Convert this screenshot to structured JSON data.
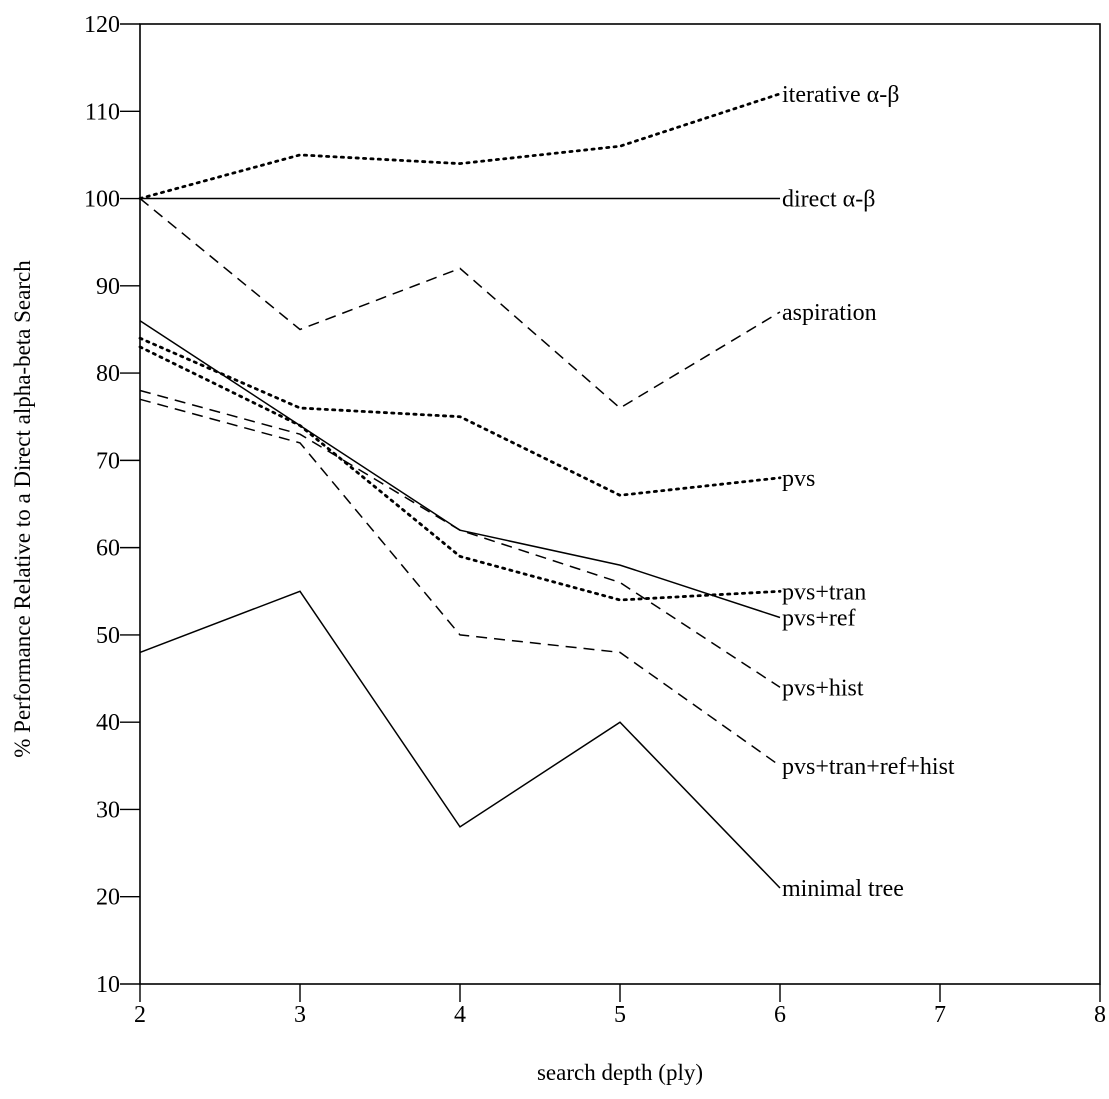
{
  "chart_data": {
    "type": "line",
    "title": "",
    "xlabel": "search depth (ply)",
    "ylabel": "% Performance Relative to a Direct alpha-beta Search",
    "xlim": [
      2,
      8
    ],
    "ylim": [
      10,
      120
    ],
    "xticks": [
      "2",
      "3",
      "4",
      "5",
      "6",
      "7",
      "8"
    ],
    "yticks": [
      "10",
      "20",
      "30",
      "40",
      "50",
      "60",
      "70",
      "80",
      "90",
      "100",
      "110",
      "120"
    ],
    "grid": false,
    "legend": "labels at line ends (right)",
    "x": [
      2,
      3,
      4,
      5,
      6
    ],
    "series": [
      {
        "name": "iterative α-β",
        "style": "dotted",
        "color": "#000000",
        "values": [
          100,
          105,
          104,
          106,
          112
        ]
      },
      {
        "name": "direct α-β",
        "style": "solid",
        "color": "#000000",
        "values": [
          100,
          100,
          100,
          100,
          100
        ]
      },
      {
        "name": "aspiration",
        "style": "dashed",
        "color": "#000000",
        "values": [
          100,
          85,
          92,
          76,
          87
        ]
      },
      {
        "name": "pvs",
        "style": "dotted",
        "color": "#000000",
        "values": [
          84,
          76,
          75,
          66,
          68
        ]
      },
      {
        "name": "pvs+tran",
        "style": "dotted",
        "color": "#000000",
        "values": [
          83,
          74,
          59,
          54,
          55
        ]
      },
      {
        "name": "pvs+ref",
        "style": "solid",
        "color": "#000000",
        "values": [
          86,
          74,
          62,
          58,
          52
        ]
      },
      {
        "name": "pvs+hist",
        "style": "dashed",
        "color": "#000000",
        "values": [
          78,
          73,
          62,
          56,
          44
        ]
      },
      {
        "name": "pvs+tran+ref+hist",
        "style": "dashed",
        "color": "#000000",
        "values": [
          77,
          72,
          50,
          48,
          35
        ]
      },
      {
        "name": "minimal tree",
        "style": "solid",
        "color": "#000000",
        "values": [
          48,
          55,
          28,
          40,
          21
        ]
      }
    ],
    "label_y_values": {
      "iterative α-β": 112,
      "direct α-β": 100,
      "aspiration": 87,
      "pvs": 68,
      "pvs+tran": 55,
      "pvs+ref": 52,
      "pvs+hist": 44,
      "pvs+tran+ref+hist": 35,
      "minimal tree": 21
    }
  }
}
